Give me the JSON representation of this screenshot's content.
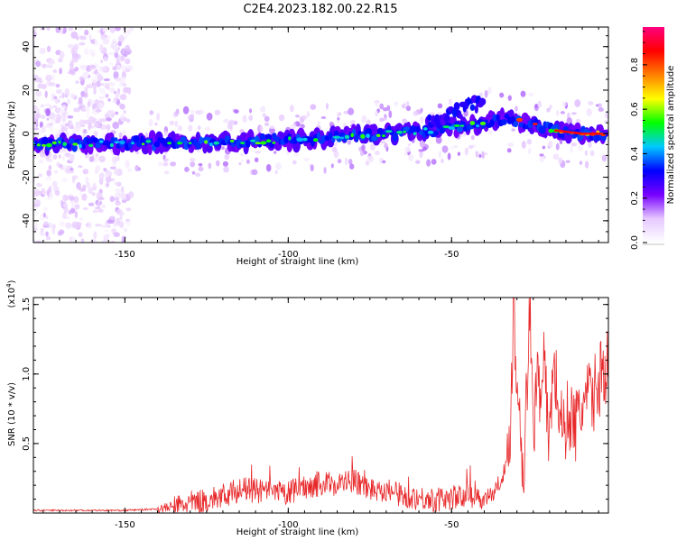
{
  "figure": {
    "title": "C2E4.2023.182.00.22.R15"
  },
  "chart_data": [
    {
      "type": "heatmap",
      "xlabel": "Height of straight line (km)",
      "ylabel": "Frequency (Hz)",
      "xlim": [
        -178,
        -2
      ],
      "ylim": [
        -50,
        49
      ],
      "xticks": [
        -150,
        -100,
        -50
      ],
      "xtick_labels": [
        "-150",
        "-100",
        "-50"
      ],
      "yticks": [
        -40,
        -20,
        0,
        20,
        40
      ],
      "ytick_labels": [
        "-40",
        "-20",
        "0",
        "20",
        "40"
      ],
      "trend": {
        "x": [
          -178,
          -150,
          -120,
          -100,
          -80,
          -60,
          -50,
          -40,
          -33,
          -25,
          -18,
          -10,
          -2
        ],
        "y": [
          -5,
          -4.5,
          -4,
          -3,
          -1,
          1,
          2.5,
          5,
          7,
          4,
          1.5,
          0,
          0
        ]
      },
      "branch": {
        "x": [
          -58,
          -50,
          -44,
          -40
        ],
        "y": [
          4,
          9,
          13,
          14
        ]
      },
      "colorbar": {
        "label": "Normalized spectral amplitude",
        "range": [
          0,
          0.97
        ],
        "ticks": [
          0.0,
          0.2,
          0.4,
          0.6,
          0.8
        ],
        "tick_labels": [
          "0.0",
          "0.2",
          "0.4",
          "0.6",
          "0.8"
        ],
        "colors": [
          "#ffffff",
          "#e6c8ff",
          "#7700ff",
          "#0000ff",
          "#00c8ff",
          "#00ff00",
          "#ffff00",
          "#ff8000",
          "#ff0000",
          "#ff0080"
        ]
      },
      "grid": false
    },
    {
      "type": "line",
      "xlabel": "Height of straight line (km)",
      "ylabel": "SNR (10 * v/v)",
      "scale_label_base": "(x10",
      "scale_label_exp": "4",
      "scale_label_end": ")",
      "xlim": [
        -178,
        -2
      ],
      "ylim": [
        0,
        1.55
      ],
      "xticks": [
        -150,
        -100,
        -50
      ],
      "xtick_labels": [
        "-150",
        "-100",
        "-50"
      ],
      "yticks": [
        0.5,
        1.0,
        1.5
      ],
      "ytick_labels": [
        "0.5",
        "1.0",
        "1.5"
      ],
      "color": "#e8292b",
      "series": [
        {
          "x": [
            -178,
            -170,
            -160,
            -150,
            -140,
            -135,
            -130,
            -125,
            -120,
            -115,
            -110,
            -105,
            -100,
            -95,
            -90,
            -85,
            -80,
            -75,
            -70,
            -65,
            -60,
            -55,
            -50,
            -45,
            -40,
            -37,
            -35,
            -33,
            -32,
            -31,
            -30,
            -29,
            -28,
            -27,
            -26,
            -25,
            -24,
            -23,
            -22,
            -21,
            -20,
            -19,
            -18,
            -16,
            -14,
            -12,
            -10,
            -8,
            -6,
            -4,
            -2
          ],
          "y": [
            0.02,
            0.02,
            0.02,
            0.02,
            0.03,
            0.05,
            0.08,
            0.1,
            0.13,
            0.18,
            0.17,
            0.15,
            0.15,
            0.2,
            0.22,
            0.22,
            0.24,
            0.18,
            0.18,
            0.13,
            0.12,
            0.1,
            0.12,
            0.13,
            0.12,
            0.15,
            0.25,
            0.35,
            0.7,
            1.55,
            0.9,
            0.8,
            0.25,
            0.9,
            1.5,
            0.5,
            1.1,
            0.9,
            1.2,
            0.8,
            0.55,
            1.1,
            0.95,
            0.6,
            0.75,
            0.65,
            0.8,
            0.85,
            0.9,
            1.05,
            1.1
          ]
        }
      ],
      "grid": false
    }
  ]
}
